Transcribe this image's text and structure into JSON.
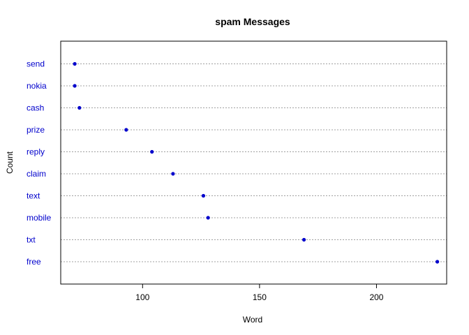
{
  "chart_data": {
    "type": "scatter",
    "subtype": "dotchart",
    "title": "spam Messages",
    "xlabel": "Word",
    "ylabel": "Count",
    "xlim": [
      65,
      230
    ],
    "xticks": [
      100,
      150,
      200
    ],
    "categories": [
      "free",
      "txt",
      "mobile",
      "text",
      "claim",
      "reply",
      "prize",
      "cash",
      "nokia",
      "send"
    ],
    "values": [
      226,
      169,
      128,
      126,
      113,
      104,
      93,
      73,
      71,
      71
    ],
    "grid": "dotted horizontal lines per category",
    "legend": "none",
    "colors": {
      "points": "#0000cc",
      "labels": "#0000cc",
      "grid": "#a0a0a0",
      "frame": "#000000"
    }
  }
}
